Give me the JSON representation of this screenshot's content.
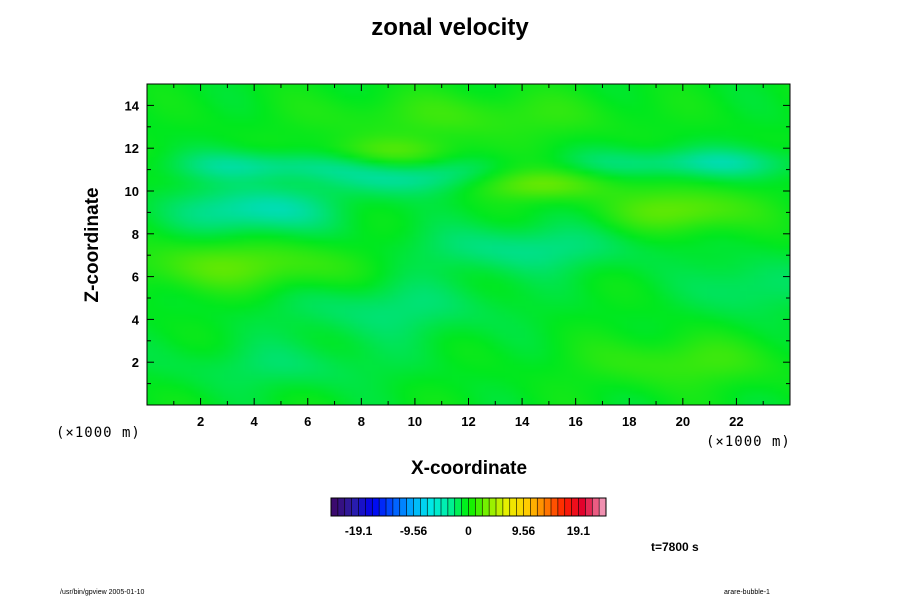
{
  "figure": {
    "title": "zonal velocity",
    "x_multiplier": "(×1000 m)",
    "z_multiplier": "(×1000 m)",
    "time_label": "t=7800 s",
    "footer_left": "/usr/bin/gpview 2005-01-10",
    "footer_right": "arare-bubble-1"
  },
  "chart_data": {
    "type": "heatmap",
    "title": "zonal velocity",
    "xlabel": "X-coordinate",
    "ylabel": "Z-coordinate",
    "xlim": [
      0,
      24
    ],
    "ylim": [
      0,
      15
    ],
    "xticks": [
      2,
      4,
      6,
      8,
      10,
      12,
      14,
      16,
      18,
      20,
      22
    ],
    "yticks": [
      2,
      4,
      6,
      8,
      10,
      12,
      14
    ],
    "field_range": [
      -1.5,
      1.5
    ],
    "colorbar": {
      "ticks": [
        -19.1,
        -9.56,
        0,
        9.56,
        19.1
      ],
      "range": [
        -23.9,
        23.9
      ],
      "colors": [
        "#3b0a6e",
        "#2b1ea8",
        "#0000f0",
        "#0050ff",
        "#00a8ff",
        "#00e8e8",
        "#00f0a0",
        "#00f000",
        "#80f000",
        "#e8f000",
        "#ffd000",
        "#ff8000",
        "#ff2000",
        "#e00030",
        "#f090b0"
      ]
    },
    "features": [
      {
        "x": 4.5,
        "z": 11.2,
        "value": -1.2,
        "sx": 2.5,
        "sz": 0.5
      },
      {
        "x": 9.0,
        "z": 11.8,
        "value": 1.0,
        "sx": 2.0,
        "sz": 0.5
      },
      {
        "x": 10.0,
        "z": 10.6,
        "value": -1.3,
        "sx": 2.0,
        "sz": 0.6
      },
      {
        "x": 14.5,
        "z": 10.3,
        "value": 1.4,
        "sx": 2.0,
        "sz": 0.5
      },
      {
        "x": 20.5,
        "z": 11.3,
        "value": -1.2,
        "sx": 3.0,
        "sz": 0.5
      },
      {
        "x": 4.0,
        "z": 9.1,
        "value": -1.5,
        "sx": 2.0,
        "sz": 0.8
      },
      {
        "x": 20.0,
        "z": 9.1,
        "value": 1.4,
        "sx": 1.8,
        "sz": 0.7
      },
      {
        "x": 3.5,
        "z": 6.5,
        "value": 1.2,
        "sx": 3.0,
        "sz": 0.8
      },
      {
        "x": 14.0,
        "z": 7.3,
        "value": -1.0,
        "sx": 3.0,
        "sz": 0.8
      },
      {
        "x": 9.0,
        "z": 4.5,
        "value": -0.8,
        "sx": 3.0,
        "sz": 1.0
      },
      {
        "x": 20.0,
        "z": 2.0,
        "value": 0.8,
        "sx": 2.5,
        "sz": 0.8
      },
      {
        "x": 5.0,
        "z": 1.8,
        "value": -0.6,
        "sx": 3.0,
        "sz": 0.8
      },
      {
        "x": 22.5,
        "z": 5.5,
        "value": -0.8,
        "sx": 1.5,
        "sz": 1.0
      },
      {
        "x": 12.0,
        "z": 13.5,
        "value": 0.7,
        "sx": 4.0,
        "sz": 0.8
      }
    ]
  }
}
